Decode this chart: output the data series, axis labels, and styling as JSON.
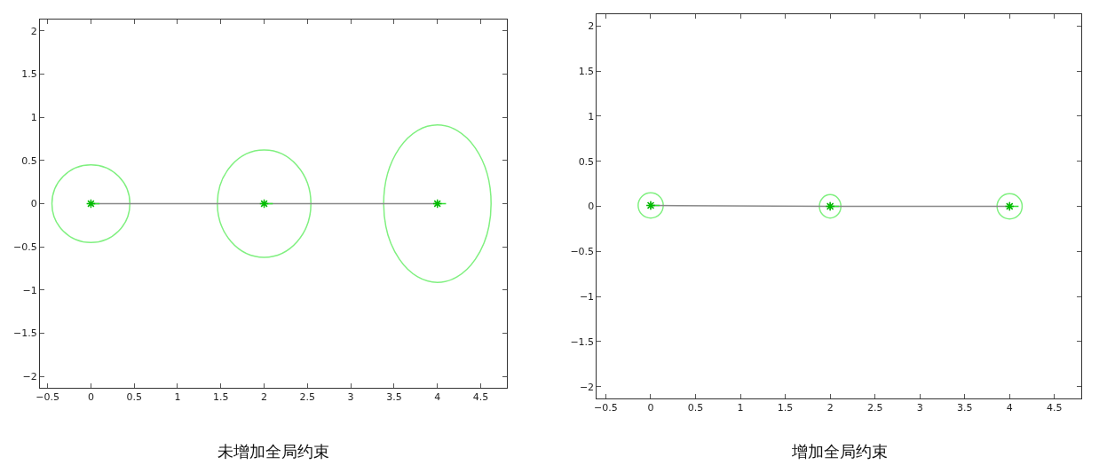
{
  "chart_data": [
    {
      "type": "scatter",
      "title": "未增加全局约束",
      "xlim": [
        -0.59,
        4.8
      ],
      "ylim": [
        -2.13,
        2.13
      ],
      "xticks": [
        {
          "value": -0.5,
          "label": "−0.5"
        },
        0,
        0.5,
        1,
        1.5,
        2,
        2.5,
        3,
        3.5,
        4,
        4.5
      ],
      "yticks": [
        {
          "value": -2,
          "label": "−2"
        },
        {
          "value": -1.5,
          "label": "−1.5"
        },
        {
          "value": -1,
          "label": "−1"
        },
        {
          "value": -0.5,
          "label": "−0.5"
        },
        0,
        0.5,
        1,
        1.5,
        2
      ],
      "grid": false,
      "series": [
        {
          "type": "line",
          "color": "#888888",
          "x": [
            0,
            2,
            4
          ],
          "values": [
            0,
            0,
            0
          ]
        },
        {
          "type": "line",
          "color": "#33dd33",
          "x": [
            0,
            0.1,
            null,
            2,
            2.1,
            null,
            4,
            4.1
          ],
          "values": [
            0,
            0,
            null,
            0,
            0,
            null,
            0,
            0
          ]
        },
        {
          "color": "#00bb00",
          "marker": "cross",
          "x": [
            0,
            2,
            4
          ],
          "values": [
            0,
            0,
            0
          ]
        }
      ]
    },
    {
      "type": "scatter",
      "title": "增加全局约束",
      "xlim": [
        -0.6,
        4.8
      ],
      "ylim": [
        -2.13,
        2.13
      ],
      "xticks": [
        {
          "value": -0.5,
          "label": "−0.5"
        },
        0,
        0.5,
        1,
        1.5,
        2,
        2.5,
        3,
        3.5,
        4,
        4.5
      ],
      "yticks": [
        {
          "value": -2,
          "label": "−2"
        },
        {
          "value": -1.5,
          "label": "−1.5"
        },
        {
          "value": -1,
          "label": "−1"
        },
        {
          "value": -0.5,
          "label": "−0.5"
        },
        0,
        0.5,
        1,
        1.5,
        2
      ],
      "grid": false,
      "series": [
        {
          "type": "line",
          "color": "#888888",
          "marker": "cross",
          "x": [
            0,
            2,
            4
          ],
          "values": [
            0.01,
            0,
            0
          ]
        },
        {
          "type": "line",
          "color": "#33dd33",
          "x": [
            0,
            0.1,
            null,
            2,
            2.1,
            null,
            4,
            4.1
          ],
          "values": [
            0.01,
            0.01,
            null,
            0,
            0,
            null,
            0,
            0
          ]
        },
        {
          "color": "#00bb00",
          "marker": "cross",
          "x": [
            0,
            2,
            4
          ],
          "values": [
            0.01,
            0,
            0
          ]
        }
      ]
    }
  ]
}
